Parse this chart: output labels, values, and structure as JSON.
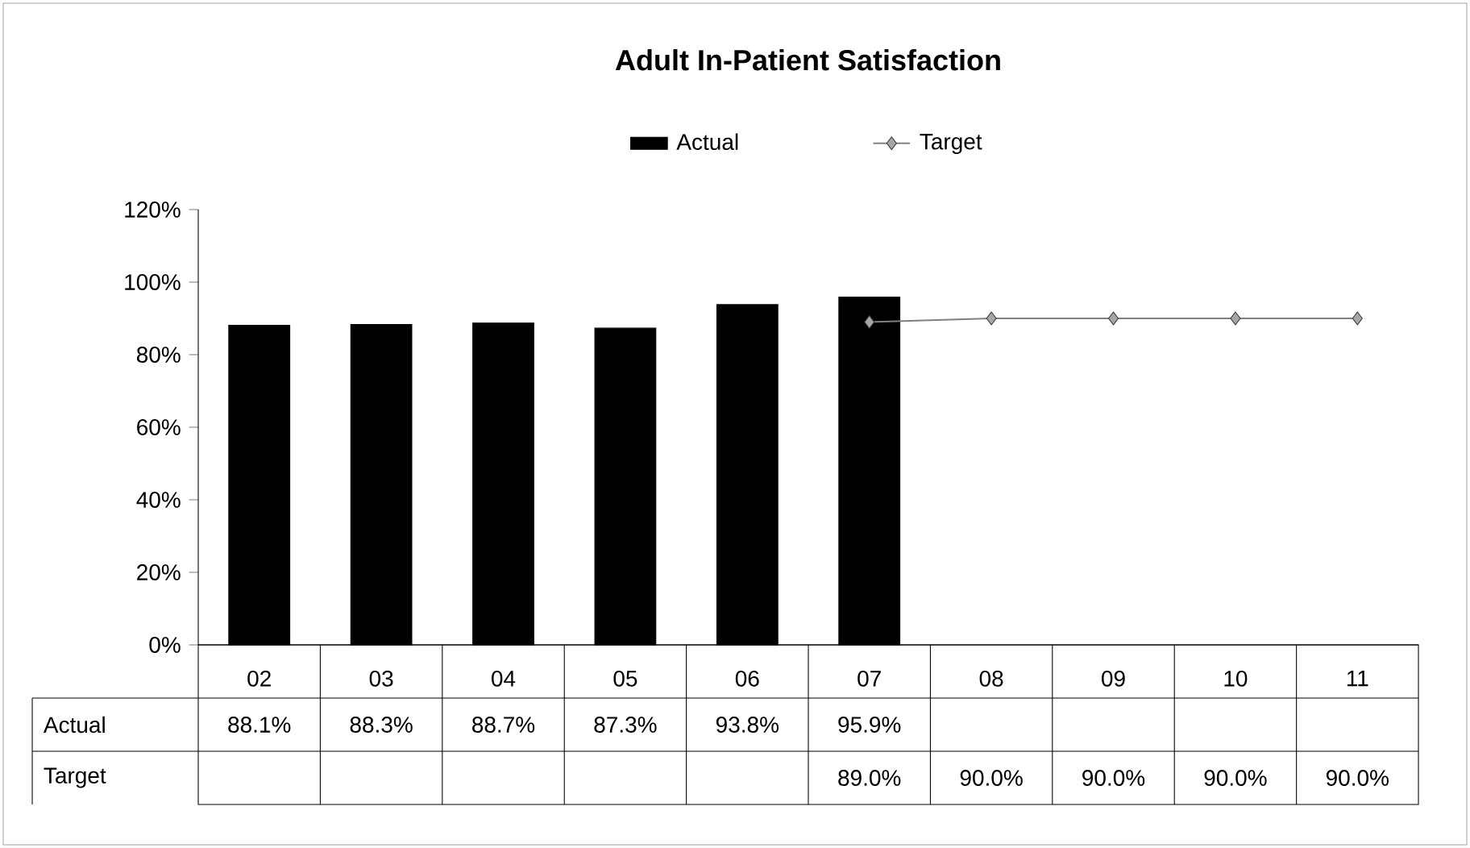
{
  "chart_data": {
    "type": "bar",
    "title": "Adult In-Patient Satisfaction",
    "categories": [
      "02",
      "03",
      "04",
      "05",
      "06",
      "07",
      "08",
      "09",
      "10",
      "11"
    ],
    "series": [
      {
        "name": "Actual",
        "color": "#000000",
        "values": [
          88.1,
          88.3,
          88.7,
          87.3,
          93.8,
          95.9,
          null,
          null,
          null,
          null
        ],
        "value_labels": [
          "88.1%",
          "88.3%",
          "88.7%",
          "87.3%",
          "93.8%",
          "95.9%",
          null,
          null,
          null,
          null
        ]
      },
      {
        "name": "Target",
        "type": "line",
        "color": "#808080",
        "marker": "diamond",
        "values": [
          null,
          null,
          null,
          null,
          null,
          89.0,
          90.0,
          90.0,
          90.0,
          90.0
        ],
        "value_labels": [
          null,
          null,
          null,
          null,
          null,
          "89.0%",
          "90.0%",
          "90.0%",
          "90.0%",
          "90.0%"
        ]
      }
    ],
    "ylim": [
      0,
      120
    ],
    "yticks": [
      {
        "value": 0,
        "label": "0%"
      },
      {
        "value": 20,
        "label": "20%"
      },
      {
        "value": 40,
        "label": "40%"
      },
      {
        "value": 60,
        "label": "60%"
      },
      {
        "value": 80,
        "label": "80%"
      },
      {
        "value": 100,
        "label": "100%"
      },
      {
        "value": 120,
        "label": "120%"
      }
    ],
    "legend": "top",
    "grid": false
  }
}
